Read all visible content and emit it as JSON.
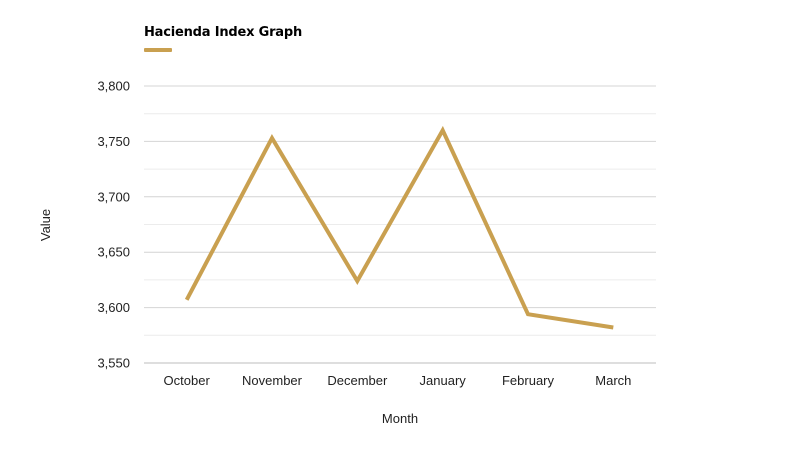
{
  "chart_data": {
    "type": "line",
    "title": "Hacienda Index Graph",
    "xlabel": "Month",
    "ylabel": "Value",
    "categories": [
      "October",
      "November",
      "December",
      "January",
      "February",
      "March"
    ],
    "series": [
      {
        "name": "Hacienda Index Graph",
        "values": [
          3607,
          3753,
          3624,
          3760,
          3594,
          3582
        ],
        "color": "#c9a050"
      }
    ],
    "ylim": [
      3550,
      3800
    ],
    "yticks": [
      3550,
      3600,
      3650,
      3700,
      3750,
      3800
    ],
    "ytick_labels": [
      "3,550",
      "3,600",
      "3,650",
      "3,700",
      "3,750",
      "3,800"
    ],
    "grid": true,
    "legend_position": "top-left"
  }
}
